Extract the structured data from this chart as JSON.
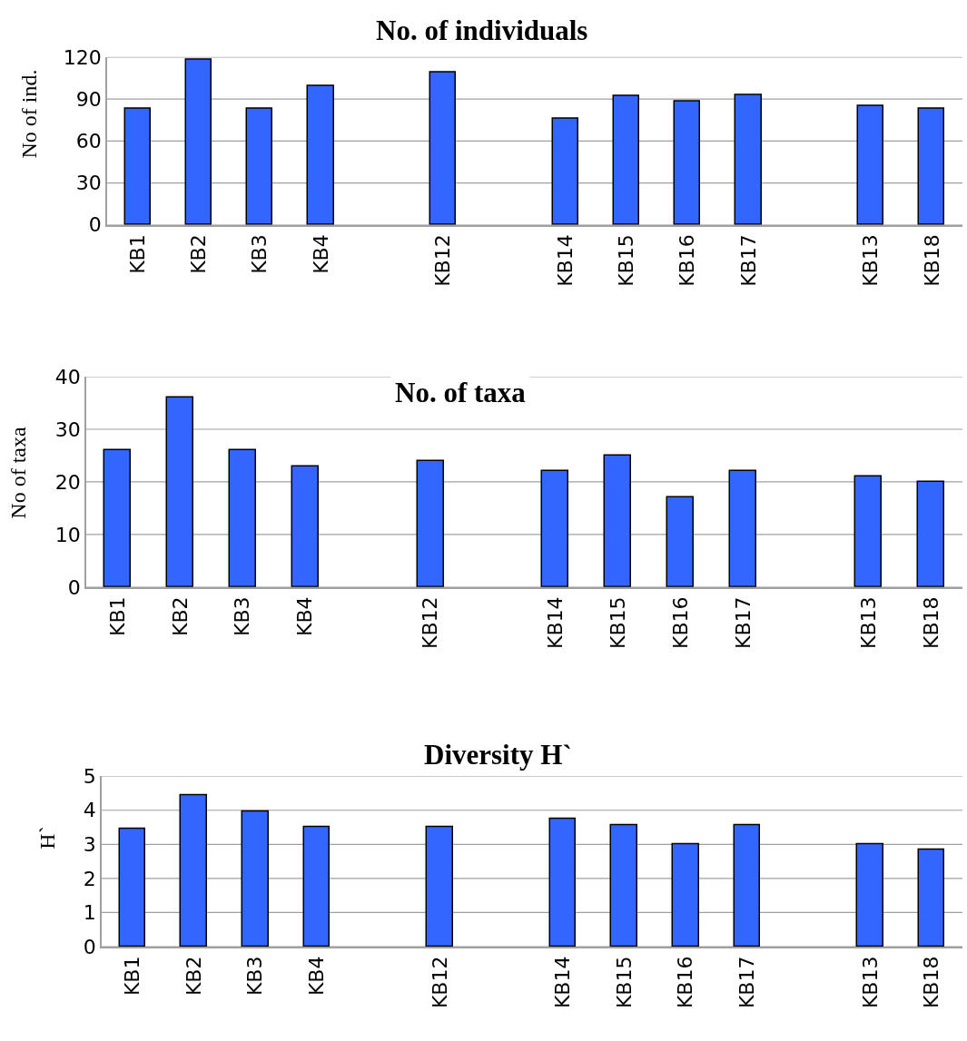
{
  "chart_data": [
    {
      "type": "bar",
      "title": "No. of individuals",
      "ylabel": "No of ind.",
      "categories": [
        "KB1",
        "KB2",
        "KB3",
        "KB4",
        null,
        "KB12",
        null,
        "KB14",
        "KB15",
        "KB16",
        "KB17",
        null,
        "KB13",
        "KB18"
      ],
      "values": [
        83,
        118,
        83,
        99,
        null,
        109,
        null,
        76,
        92,
        88,
        93,
        null,
        85,
        83
      ],
      "color": "#3366ff",
      "ylim": [
        0,
        120
      ],
      "yticks": [
        0,
        30,
        60,
        90,
        120
      ],
      "grid": "y"
    },
    {
      "type": "bar",
      "title": "No. of taxa",
      "ylabel": "No of taxa",
      "categories": [
        "KB1",
        "KB2",
        "KB3",
        "KB4",
        null,
        "KB12",
        null,
        "KB14",
        "KB15",
        "KB16",
        "KB17",
        null,
        "KB13",
        "KB18"
      ],
      "values": [
        26,
        36,
        26,
        23,
        null,
        24,
        null,
        22,
        25,
        17,
        22,
        null,
        21,
        20
      ],
      "color": "#3366ff",
      "ylim": [
        0,
        40
      ],
      "yticks": [
        0,
        10,
        20,
        30,
        40
      ],
      "grid": "y"
    },
    {
      "type": "bar",
      "title": "Diversity H`",
      "ylabel": "H`",
      "categories": [
        "KB1",
        "KB2",
        "KB3",
        "KB4",
        null,
        "KB12",
        null,
        "KB14",
        "KB15",
        "KB16",
        "KB17",
        null,
        "KB13",
        "KB18"
      ],
      "values": [
        3.45,
        4.45,
        3.95,
        3.5,
        null,
        3.5,
        null,
        3.75,
        3.55,
        3.0,
        3.55,
        null,
        3.0,
        2.85
      ],
      "color": "#3366ff",
      "ylim": [
        0,
        5
      ],
      "yticks": [
        0,
        1,
        2,
        3,
        4,
        5
      ],
      "grid": "y"
    }
  ]
}
